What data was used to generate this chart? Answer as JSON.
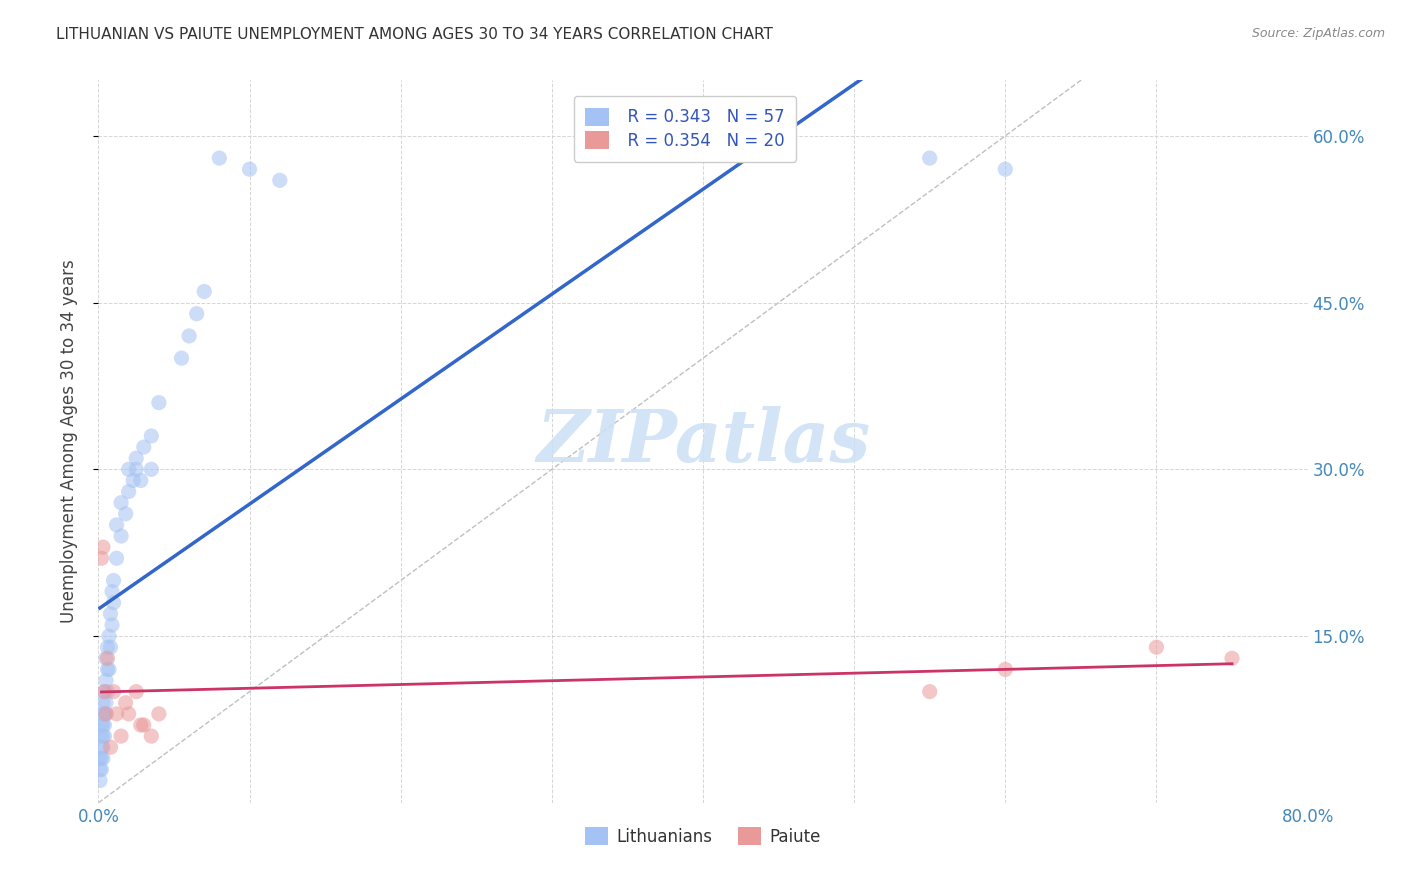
{
  "title": "LITHUANIAN VS PAIUTE UNEMPLOYMENT AMONG AGES 30 TO 34 YEARS CORRELATION CHART",
  "source": "Source: ZipAtlas.com",
  "ylabel": "Unemployment Among Ages 30 to 34 years",
  "xlim": [
    0.0,
    0.8
  ],
  "ylim": [
    0.0,
    0.65
  ],
  "legend_r1": "R = 0.343",
  "legend_n1": "N = 57",
  "legend_r2": "R = 0.354",
  "legend_n2": "N = 20",
  "color_lithuanian": "#a4c2f4",
  "color_paiute": "#ea9999",
  "color_line_lithuanian": "#3366cc",
  "color_line_paiute": "#cc3366",
  "color_diag": "#b0b0b0",
  "scatter_size": 120,
  "lithuanian_x": [
    0.001,
    0.001,
    0.001,
    0.002,
    0.002,
    0.002,
    0.002,
    0.002,
    0.003,
    0.003,
    0.003,
    0.003,
    0.003,
    0.003,
    0.004,
    0.004,
    0.004,
    0.004,
    0.005,
    0.005,
    0.005,
    0.005,
    0.006,
    0.006,
    0.006,
    0.007,
    0.007,
    0.008,
    0.008,
    0.009,
    0.009,
    0.01,
    0.01,
    0.012,
    0.012,
    0.015,
    0.015,
    0.018,
    0.02,
    0.02,
    0.023,
    0.025,
    0.025,
    0.028,
    0.03,
    0.035,
    0.035,
    0.04,
    0.055,
    0.06,
    0.065,
    0.07,
    0.08,
    0.1,
    0.12,
    0.55,
    0.6
  ],
  "lithuanian_y": [
    0.02,
    0.03,
    0.04,
    0.03,
    0.04,
    0.05,
    0.06,
    0.07,
    0.04,
    0.05,
    0.06,
    0.07,
    0.08,
    0.09,
    0.06,
    0.07,
    0.08,
    0.1,
    0.08,
    0.09,
    0.11,
    0.13,
    0.1,
    0.12,
    0.14,
    0.12,
    0.15,
    0.14,
    0.17,
    0.16,
    0.19,
    0.18,
    0.2,
    0.22,
    0.25,
    0.24,
    0.27,
    0.26,
    0.28,
    0.3,
    0.29,
    0.3,
    0.31,
    0.29,
    0.32,
    0.3,
    0.33,
    0.36,
    0.4,
    0.42,
    0.44,
    0.46,
    0.58,
    0.57,
    0.56,
    0.58,
    0.57
  ],
  "paiute_x": [
    0.002,
    0.003,
    0.004,
    0.005,
    0.006,
    0.008,
    0.01,
    0.012,
    0.015,
    0.018,
    0.02,
    0.025,
    0.028,
    0.03,
    0.035,
    0.04,
    0.55,
    0.6,
    0.7,
    0.75
  ],
  "paiute_y": [
    0.22,
    0.23,
    0.1,
    0.08,
    0.13,
    0.05,
    0.1,
    0.08,
    0.06,
    0.09,
    0.08,
    0.1,
    0.07,
    0.07,
    0.06,
    0.08,
    0.1,
    0.12,
    0.14,
    0.13
  ]
}
